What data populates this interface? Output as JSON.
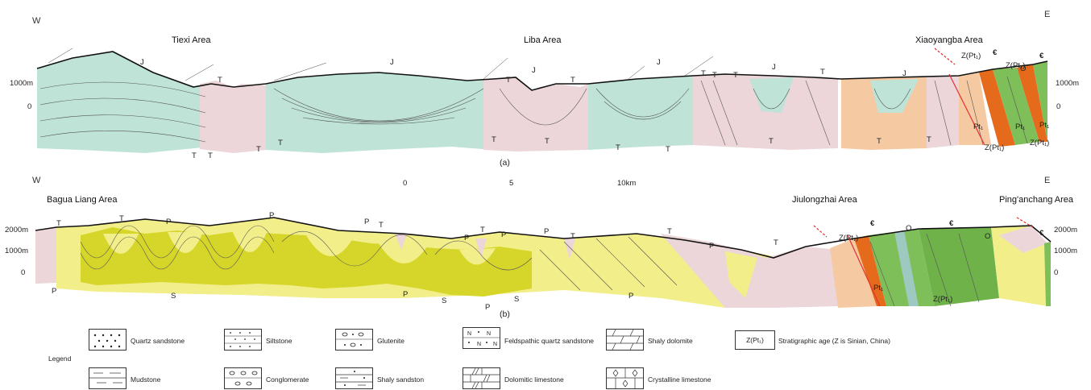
{
  "section_a": {
    "west": "W",
    "east": "E",
    "areas": [
      "Tiexi Area",
      "Liba Area",
      "Xiaoyangba  Area"
    ],
    "elev_left": [
      "1000m",
      "0"
    ],
    "elev_right": [
      "1000m",
      "0"
    ],
    "caption": "(a)",
    "unit_labels": [
      "J",
      "J",
      "J",
      "J",
      "J",
      "J",
      "T",
      "T",
      "T",
      "T",
      "T",
      "T",
      "T",
      "T",
      "T",
      "T",
      "T",
      "T",
      "T",
      "T",
      "T",
      "T",
      "T",
      "T"
    ],
    "age_labels": [
      "Z(Pt₁)",
      "Z(Pt₁)",
      "Z(Pt₁)",
      "Z(Pt₁)",
      "Pt₁",
      "Pt₁",
      "Pt₁"
    ],
    "cambrian": [
      "€",
      "€"
    ],
    "ordovician": [
      "O"
    ]
  },
  "section_b": {
    "west": "W",
    "east": "E",
    "areas": [
      "Bagua Liang Area",
      "Jiulongzhai Area",
      "Ping'anchang Area"
    ],
    "elev_left": [
      "2000m",
      "1000m",
      "0"
    ],
    "elev_right": [
      "2000m",
      "1000m",
      "0"
    ],
    "caption": "(b)",
    "unit_labels": [
      "T",
      "T",
      "T",
      "T",
      "T",
      "T",
      "T",
      "P",
      "P",
      "P",
      "P",
      "P",
      "P",
      "P",
      "P",
      "P",
      "P",
      "P",
      "S",
      "S",
      "S"
    ],
    "age_labels": [
      "Z(Pt₁)",
      "Z(Pt₁)",
      "Pt₁"
    ],
    "cambrian": [
      "€",
      "€",
      "€"
    ],
    "ordovician": [
      "O",
      "O"
    ]
  },
  "scale_bar": {
    "ticks": [
      "0",
      "5",
      "10km"
    ]
  },
  "legend": {
    "title": "Legend",
    "items": [
      {
        "label": "Quartz sandstone"
      },
      {
        "label": "Siltstone"
      },
      {
        "label": "Glutenite"
      },
      {
        "label": "Feldspathic quartz sandstone"
      },
      {
        "label": "Shaly dolomite"
      },
      {
        "label": "Mudstone"
      },
      {
        "label": "Conglomerate"
      },
      {
        "label": "Shaly sandston"
      },
      {
        "label": "Dolomitic limestone"
      },
      {
        "label": "Crystalline limestone"
      }
    ],
    "age_box": "Z(Pt₁)",
    "age_note": "Stratigraphic age (Z is Sinian, China)"
  },
  "colors": {
    "jurassic": "#bfe3d6",
    "triassic": "#ecd6d9",
    "permian": "#f2ee8a",
    "silurian": "#d6d62a",
    "sinian": "#f5caa3",
    "cambrian_green": "#7fbf5a",
    "orange": "#e56a1c",
    "fault": "#e23030"
  }
}
